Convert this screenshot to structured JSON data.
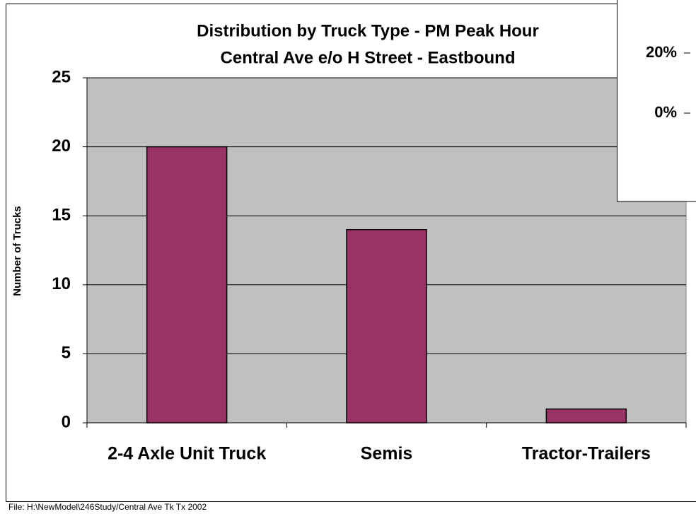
{
  "chart_data": {
    "type": "bar",
    "title": "Distribution by Truck Type - PM Peak Hour",
    "subtitle": "Central Ave e/o H Street - Eastbound",
    "y_label": "Number of Trucks",
    "categories": [
      "2-4 Axle Unit Truck",
      "Semis",
      "Tractor-Trailers"
    ],
    "values": [
      20,
      14,
      1
    ],
    "color": "#993366",
    "ylim": [
      0,
      25
    ],
    "yticks": [
      0,
      5,
      10,
      15,
      20,
      25
    ],
    "grid": true
  },
  "inset": {
    "yticks": [
      {
        "value": 20,
        "label": "20%"
      },
      {
        "value": 0,
        "label": "0%"
      }
    ]
  },
  "footnote": "File: H:\\NewModel\\246Study/Central Ave Tk Tx 2002"
}
